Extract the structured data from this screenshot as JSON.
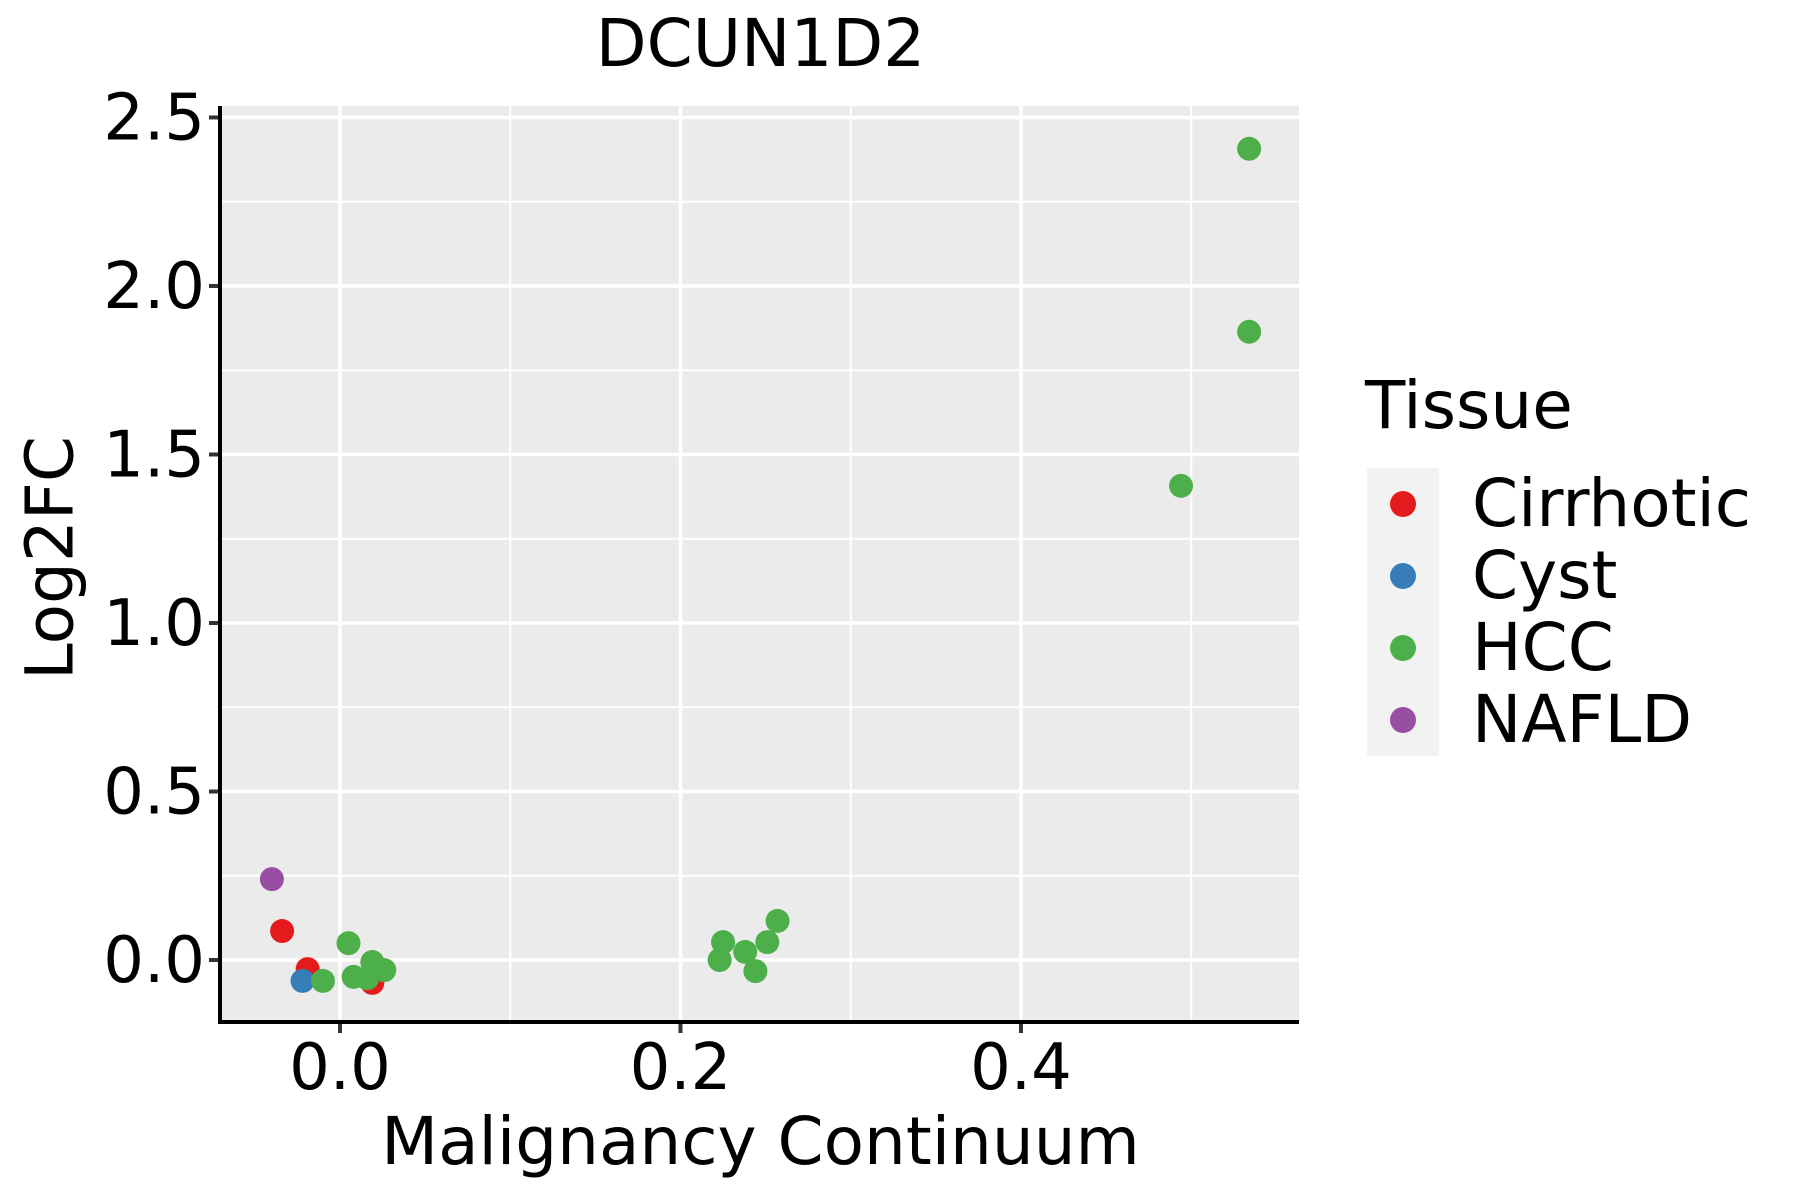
{
  "figure": {
    "title": "DCUN1D2",
    "xlabel": "Malignancy Continuum",
    "ylabel": "Log2FC",
    "legend_title": "Tissue"
  },
  "chart_data": {
    "type": "scatter",
    "title": "DCUN1D2",
    "xlabel": "Malignancy Continuum",
    "ylabel": "Log2FC",
    "grid": true,
    "legend_position": "right",
    "legend_title": "Tissue",
    "xlim": [
      -0.0693,
      0.5633
    ],
    "ylim": [
      -0.178,
      2.534
    ],
    "x_ticks": [
      0.0,
      0.2,
      0.4
    ],
    "x_tick_labels": [
      "0.0",
      "0.2",
      "0.4"
    ],
    "x_minor_ticks": [
      0.1,
      0.3,
      0.5
    ],
    "y_ticks": [
      0.0,
      0.5,
      1.0,
      1.5,
      2.0,
      2.5
    ],
    "y_tick_labels": [
      "0.0",
      "0.5",
      "1.0",
      "1.5",
      "2.0",
      "2.5"
    ],
    "y_minor_ticks": [
      0.25,
      0.75,
      1.25,
      1.75,
      2.25
    ],
    "style": {
      "panel_bg": "#EBEBEB",
      "grid_color": "#FFFFFF",
      "axis_line_color": "#000000",
      "tick_mark_color": "#333333",
      "legend_key_bg": "#F2F2F2",
      "point_radius": 12
    },
    "series": [
      {
        "name": "Cirrhotic",
        "color": "#E41A1C",
        "points": [
          [
            -0.034,
            0.086
          ],
          [
            -0.019,
            -0.027
          ],
          [
            0.019,
            -0.068
          ]
        ]
      },
      {
        "name": "Cyst",
        "color": "#377EB8",
        "points": [
          [
            -0.022,
            -0.062
          ]
        ]
      },
      {
        "name": "HCC",
        "color": "#4DAF4A",
        "points": [
          [
            -0.01,
            -0.062
          ],
          [
            0.005,
            0.05
          ],
          [
            0.008,
            -0.05
          ],
          [
            0.016,
            -0.054
          ],
          [
            0.019,
            -0.006
          ],
          [
            0.026,
            -0.03
          ],
          [
            0.223,
            0.0
          ],
          [
            0.225,
            0.053
          ],
          [
            0.238,
            0.024
          ],
          [
            0.244,
            -0.033
          ],
          [
            0.251,
            0.053
          ],
          [
            0.257,
            0.116
          ],
          [
            0.494,
            1.407
          ],
          [
            0.534,
            1.864
          ],
          [
            0.534,
            2.407
          ]
        ]
      },
      {
        "name": "NAFLD",
        "color": "#984EA3",
        "points": [
          [
            -0.04,
            0.24
          ]
        ]
      }
    ]
  }
}
